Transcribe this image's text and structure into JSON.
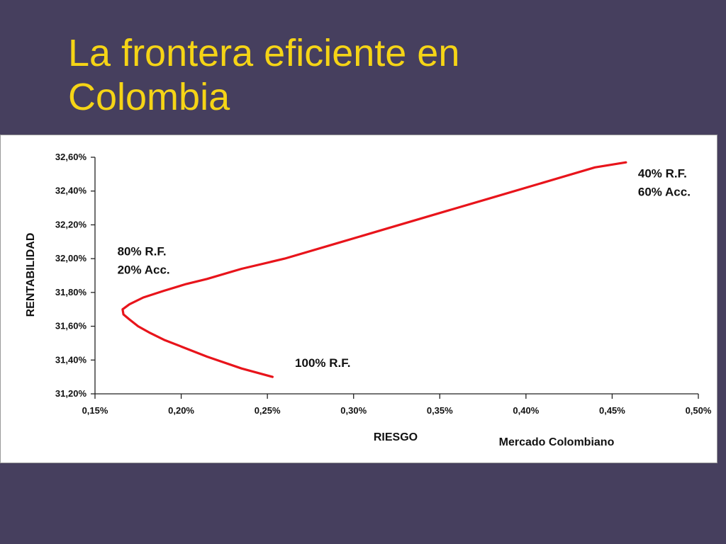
{
  "slide": {
    "title_line1": "La frontera eficiente en",
    "title_line2": "Colombia",
    "background": "#463f5e",
    "title_color": "#f5d416"
  },
  "chart_data": {
    "type": "line",
    "title": "",
    "xlabel": "RIESGO",
    "ylabel": "RENTABILIDAD",
    "source_note": "Mercado Colombiano",
    "xlim": [
      0.15,
      0.5
    ],
    "ylim": [
      31.2,
      32.6
    ],
    "x_ticks": [
      "0,15%",
      "0,20%",
      "0,25%",
      "0,30%",
      "0,35%",
      "0,40%",
      "0,45%",
      "0,50%"
    ],
    "y_ticks": [
      "31,20%",
      "31,40%",
      "31,60%",
      "31,80%",
      "32,00%",
      "32,20%",
      "32,40%",
      "32,60%"
    ],
    "grid": false,
    "line_color": "#e8141b",
    "series": [
      {
        "x": [
          0.253,
          0.235,
          0.215,
          0.2,
          0.19,
          0.182,
          0.175,
          0.17,
          0.1665,
          0.166,
          0.17,
          0.178,
          0.19,
          0.203,
          0.215,
          0.235,
          0.26,
          0.29,
          0.32,
          0.35,
          0.38,
          0.41,
          0.44,
          0.458
        ],
        "y": [
          31.3,
          31.35,
          31.42,
          31.48,
          31.52,
          31.56,
          31.6,
          31.64,
          31.67,
          31.7,
          31.73,
          31.77,
          31.81,
          31.85,
          31.88,
          31.94,
          32.0,
          32.09,
          32.18,
          32.27,
          32.36,
          32.45,
          32.54,
          32.57
        ]
      }
    ],
    "annotations": [
      {
        "lines": [
          "40% R.F.",
          "60% Acc."
        ],
        "x": 0.465,
        "y": 32.48
      },
      {
        "lines": [
          "80% R.F.",
          "20%  Acc."
        ],
        "x": 0.163,
        "y": 32.02
      },
      {
        "lines": [
          "100% R.F."
        ],
        "x": 0.266,
        "y": 31.36
      }
    ]
  }
}
